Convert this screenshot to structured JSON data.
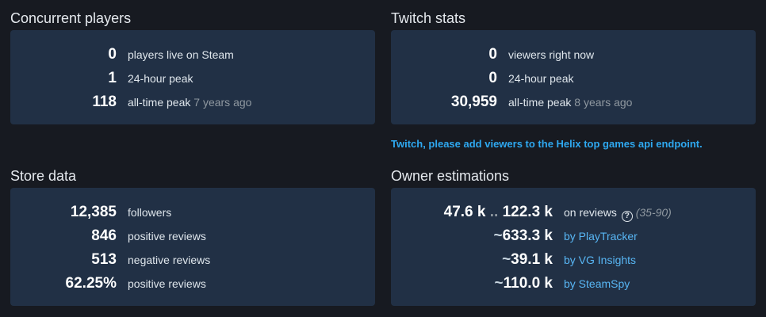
{
  "concurrent": {
    "title": "Concurrent players",
    "rows": [
      {
        "value": "0",
        "label": "players live on Steam",
        "suffix": ""
      },
      {
        "value": "1",
        "label": "24-hour peak",
        "suffix": ""
      },
      {
        "value": "118",
        "label": "all-time peak",
        "suffix": "7 years ago"
      }
    ]
  },
  "twitch": {
    "title": "Twitch stats",
    "rows": [
      {
        "value": "0",
        "label": "viewers right now",
        "suffix": ""
      },
      {
        "value": "0",
        "label": "24-hour peak",
        "suffix": ""
      },
      {
        "value": "30,959",
        "label": "all-time peak",
        "suffix": "8 years ago"
      }
    ],
    "notice": "Twitch, please add viewers to the Helix top games api endpoint."
  },
  "store": {
    "title": "Store data",
    "rows": [
      {
        "value": "12,385",
        "label": "followers"
      },
      {
        "value": "846",
        "label": "positive reviews"
      },
      {
        "value": "513",
        "label": "negative reviews"
      },
      {
        "value": "62.25%",
        "label": "positive reviews"
      }
    ]
  },
  "owners": {
    "title": "Owner estimations",
    "reviews": {
      "low": "47.6 k",
      "sep": "..",
      "high": "122.3 k",
      "label": "on reviews",
      "help_icon": "question-circle-icon",
      "range": "(35-90)"
    },
    "rows": [
      {
        "tilde": "~",
        "value": "633.3 k",
        "label": "by PlayTracker"
      },
      {
        "tilde": "~",
        "value": "39.1 k",
        "label": "by VG Insights"
      },
      {
        "tilde": "~",
        "value": "110.0 k",
        "label": "by SteamSpy"
      }
    ]
  }
}
